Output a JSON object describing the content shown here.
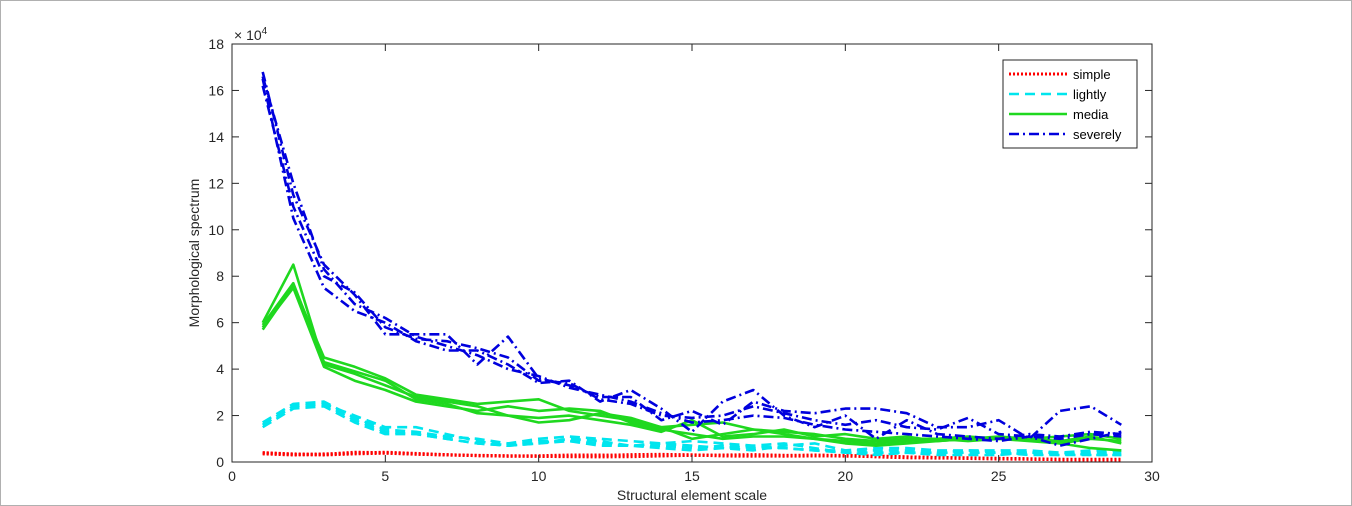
{
  "chart_data": {
    "type": "line",
    "xlabel": "Structural element scale",
    "ylabel": "Morphological spectrum",
    "y_exponent": "× 10^4",
    "y_exponent_base": "× 10",
    "y_exponent_power": "4",
    "xlim": [
      0,
      30
    ],
    "ylim": [
      0,
      18
    ],
    "y_unit_multiplier": 10000,
    "xticks": [
      "0",
      "5",
      "10",
      "15",
      "20",
      "25",
      "30"
    ],
    "yticks": [
      "0",
      "2",
      "4",
      "6",
      "8",
      "10",
      "12",
      "14",
      "16",
      "18"
    ],
    "grid": false,
    "legend_position": "top-right",
    "x": [
      1,
      2,
      3,
      4,
      5,
      6,
      7,
      8,
      9,
      10,
      11,
      12,
      13,
      14,
      15,
      16,
      17,
      18,
      19,
      20,
      21,
      22,
      23,
      24,
      25,
      26,
      27,
      28,
      29
    ],
    "groups": [
      {
        "name": "simple",
        "color": "#ff0000",
        "style": "dotted",
        "series": [
          [
            0.4,
            0.33,
            0.3,
            0.35,
            0.38,
            0.33,
            0.3,
            0.27,
            0.25,
            0.24,
            0.23,
            0.22,
            0.23,
            0.26,
            0.3,
            0.29,
            0.28,
            0.28,
            0.3,
            0.28,
            0.25,
            0.22,
            0.2,
            0.18,
            0.15,
            0.12,
            0.1,
            0.1,
            0.1
          ],
          [
            0.4,
            0.35,
            0.33,
            0.42,
            0.4,
            0.35,
            0.3,
            0.28,
            0.26,
            0.25,
            0.26,
            0.28,
            0.32,
            0.33,
            0.3,
            0.26,
            0.25,
            0.27,
            0.29,
            0.27,
            0.22,
            0.18,
            0.17,
            0.17,
            0.16,
            0.14,
            0.12,
            0.12,
            0.12
          ],
          [
            0.38,
            0.32,
            0.35,
            0.38,
            0.42,
            0.37,
            0.32,
            0.27,
            0.25,
            0.27,
            0.3,
            0.3,
            0.28,
            0.27,
            0.28,
            0.3,
            0.32,
            0.29,
            0.27,
            0.25,
            0.24,
            0.21,
            0.18,
            0.15,
            0.13,
            0.12,
            0.1,
            0.09,
            0.09
          ],
          [
            0.35,
            0.3,
            0.32,
            0.4,
            0.39,
            0.34,
            0.31,
            0.29,
            0.27,
            0.26,
            0.25,
            0.27,
            0.3,
            0.31,
            0.31,
            0.28,
            0.26,
            0.25,
            0.26,
            0.27,
            0.26,
            0.22,
            0.19,
            0.16,
            0.14,
            0.13,
            0.11,
            0.1,
            0.09
          ]
        ]
      },
      {
        "name": "lightly",
        "color": "#00e5ee",
        "style": "dashed",
        "series": [
          [
            1.6,
            2.4,
            2.5,
            2.0,
            1.5,
            1.5,
            1.2,
            0.9,
            0.7,
            0.8,
            1.0,
            0.9,
            0.7,
            0.8,
            0.7,
            0.6,
            0.5,
            0.7,
            0.8,
            0.5,
            0.5,
            0.5,
            0.4,
            0.5,
            0.5,
            0.5,
            0.4,
            0.5,
            0.5
          ],
          [
            1.5,
            2.3,
            2.4,
            1.7,
            1.2,
            1.2,
            1.0,
            0.8,
            0.7,
            0.9,
            0.9,
            0.7,
            0.7,
            0.6,
            0.5,
            0.6,
            0.7,
            0.8,
            0.6,
            0.4,
            0.3,
            0.4,
            0.3,
            0.3,
            0.3,
            0.4,
            0.4,
            0.3,
            0.3
          ],
          [
            1.7,
            2.5,
            2.6,
            1.9,
            1.4,
            1.3,
            1.1,
            1.0,
            0.8,
            1.0,
            1.1,
            1.0,
            0.9,
            0.8,
            0.9,
            0.8,
            0.7,
            0.6,
            0.5,
            0.5,
            0.6,
            0.6,
            0.5,
            0.5,
            0.4,
            0.4,
            0.3,
            0.4,
            0.4
          ],
          [
            1.6,
            2.4,
            2.5,
            1.8,
            1.3,
            1.2,
            1.0,
            0.8,
            0.7,
            0.8,
            0.9,
            0.8,
            0.7,
            0.7,
            0.6,
            0.7,
            0.6,
            0.6,
            0.5,
            0.4,
            0.4,
            0.4,
            0.4,
            0.4,
            0.4,
            0.3,
            0.3,
            0.3,
            0.3
          ]
        ]
      },
      {
        "name": "media",
        "color": "#1fd81f",
        "style": "solid",
        "series": [
          [
            6.0,
            8.5,
            4.2,
            3.8,
            3.3,
            2.8,
            2.6,
            2.4,
            2.0,
            1.7,
            1.8,
            2.1,
            1.9,
            1.5,
            1.0,
            1.2,
            1.4,
            1.2,
            1.0,
            0.8,
            0.7,
            0.8,
            0.9,
            1.0,
            1.1,
            1.0,
            0.8,
            0.6,
            0.5
          ],
          [
            5.7,
            7.6,
            4.5,
            4.1,
            3.6,
            2.9,
            2.7,
            2.5,
            2.6,
            2.7,
            2.2,
            2.0,
            1.8,
            1.5,
            1.6,
            1.7,
            1.4,
            1.3,
            1.2,
            1.0,
            0.9,
            1.0,
            1.0,
            0.9,
            1.0,
            1.0,
            1.1,
            1.2,
            1.0
          ],
          [
            5.8,
            7.5,
            4.1,
            3.5,
            3.1,
            2.6,
            2.4,
            2.2,
            2.4,
            2.2,
            2.3,
            2.2,
            1.7,
            1.4,
            1.2,
            1.0,
            1.1,
            1.1,
            1.0,
            0.9,
            0.8,
            0.9,
            1.0,
            1.1,
            1.0,
            0.9,
            0.8,
            1.0,
            0.9
          ],
          [
            5.9,
            7.7,
            4.3,
            3.9,
            3.5,
            2.7,
            2.5,
            2.1,
            2.0,
            1.9,
            2.0,
            1.8,
            1.6,
            1.3,
            1.8,
            1.1,
            1.2,
            1.4,
            1.1,
            1.2,
            1.0,
            1.1,
            0.9,
            1.0,
            1.0,
            1.0,
            0.9,
            1.1,
            0.8
          ]
        ]
      },
      {
        "name": "severely",
        "color": "#0000dd",
        "style": "dashdot",
        "series": [
          [
            16.8,
            11.5,
            8.5,
            7.2,
            5.5,
            5.5,
            5.5,
            4.2,
            5.4,
            3.6,
            3.3,
            2.8,
            2.8,
            1.8,
            2.2,
            1.6,
            2.6,
            2.2,
            2.1,
            2.3,
            2.3,
            2.1,
            1.5,
            1.5,
            1.8,
            1.0,
            2.2,
            2.4,
            1.6
          ],
          [
            16.5,
            10.5,
            7.5,
            6.5,
            6.0,
            5.2,
            4.8,
            4.8,
            4.2,
            3.4,
            3.5,
            2.6,
            3.1,
            2.3,
            1.3,
            2.6,
            3.1,
            2.0,
            1.5,
            2.0,
            1.0,
            1.8,
            1.2,
            1.1,
            1.0,
            1.2,
            1.1,
            1.3,
            1.2
          ],
          [
            16.2,
            11.0,
            8.0,
            7.3,
            5.8,
            5.3,
            5.2,
            4.9,
            4.5,
            3.5,
            3.4,
            2.7,
            2.5,
            2.0,
            1.9,
            2.0,
            2.4,
            2.1,
            1.8,
            1.6,
            1.8,
            1.5,
            1.4,
            1.9,
            1.2,
            1.1,
            1.0,
            1.2,
            1.1
          ],
          [
            16.6,
            12.0,
            8.3,
            6.8,
            6.2,
            5.4,
            5.0,
            4.6,
            4.0,
            3.7,
            3.2,
            2.9,
            2.6,
            2.1,
            1.7,
            1.8,
            2.0,
            1.9,
            1.6,
            1.4,
            1.3,
            1.2,
            1.1,
            1.0,
            0.9,
            1.1,
            0.7,
            1.0,
            1.3
          ]
        ]
      }
    ]
  }
}
